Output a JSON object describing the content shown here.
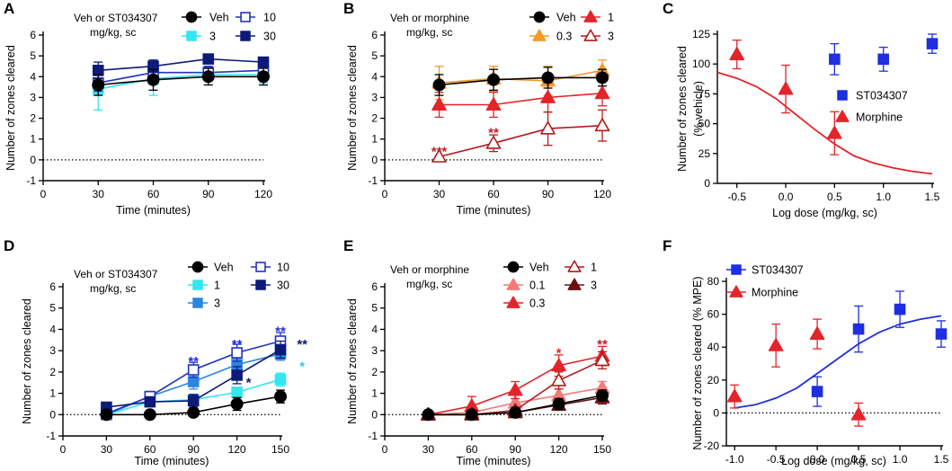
{
  "colors": {
    "veh": "#000000",
    "st_3": "#33e6f0",
    "st_10": "#2233c0",
    "st_30": "#0d1a7a",
    "st_1": "#33e6f0",
    "st_3d": "#2b86e0",
    "st_blue": "#1f2ee0",
    "mor_red": "#e3242b",
    "mor_dark": "#b01c1c",
    "mor_orange": "#f39a2b",
    "mor_light": "#f47a7a",
    "mor_brown": "#6a1212",
    "sig_red": "#c0202a"
  },
  "chart_data": [
    {
      "panel": "A",
      "type": "line",
      "xlabel": "Time (minutes)",
      "ylabel": "Number of zones cleared",
      "xlim": [
        0,
        120
      ],
      "ylim": [
        -1,
        6
      ],
      "xticks": [
        0,
        30,
        60,
        90,
        120
      ],
      "yticks": [
        -1,
        0,
        1,
        2,
        3,
        4,
        5,
        6
      ],
      "legend_title": [
        "Veh or ST034307",
        "mg/kg, sc"
      ],
      "legend": [
        {
          "label": "Veh",
          "row": 0,
          "col": 0
        },
        {
          "label": "10",
          "row": 0,
          "col": 1
        },
        {
          "label": "3",
          "row": 1,
          "col": 0
        },
        {
          "label": "30",
          "row": 1,
          "col": 1
        }
      ],
      "x": [
        30,
        60,
        90,
        120
      ],
      "series": [
        {
          "name": "3",
          "color": "#33e6f0",
          "marker": "square",
          "filled": true,
          "values": [
            3.4,
            3.9,
            4.1,
            4.1
          ],
          "err": [
            1.0,
            0.8,
            0.3,
            0.4
          ]
        },
        {
          "name": "10",
          "color": "#2233c0",
          "marker": "square",
          "filled": false,
          "values": [
            3.7,
            4.2,
            4.2,
            4.3
          ],
          "err": [
            0.4,
            0.3,
            0.3,
            0.3
          ]
        },
        {
          "name": "30",
          "color": "#0d1a7a",
          "marker": "square",
          "filled": true,
          "values": [
            4.3,
            4.5,
            4.85,
            4.7
          ],
          "err": [
            0.4,
            0.3,
            0.15,
            0.2
          ]
        },
        {
          "name": "Veh",
          "color": "#000000",
          "marker": "circle",
          "filled": true,
          "values": [
            3.6,
            3.85,
            4.0,
            4.0
          ],
          "err": [
            0.5,
            0.5,
            0.4,
            0.4
          ]
        }
      ]
    },
    {
      "panel": "B",
      "type": "line",
      "xlabel": "Time (minutes)",
      "ylabel": "Number of zones cleared",
      "xlim": [
        0,
        120
      ],
      "ylim": [
        -1,
        6
      ],
      "xticks": [
        0,
        30,
        60,
        90,
        120
      ],
      "yticks": [
        -1,
        0,
        1,
        2,
        3,
        4,
        5,
        6
      ],
      "legend_title": [
        "Veh or morphine",
        "mg/kg, sc"
      ],
      "legend": [
        {
          "label": "Veh",
          "row": 0,
          "col": 0
        },
        {
          "label": "1",
          "row": 0,
          "col": 1
        },
        {
          "label": "0.3",
          "row": 1,
          "col": 0
        },
        {
          "label": "3",
          "row": 1,
          "col": 1
        }
      ],
      "x": [
        30,
        60,
        90,
        120
      ],
      "series": [
        {
          "name": "0.3",
          "color": "#f39a2b",
          "marker": "triangle",
          "filled": true,
          "values": [
            3.7,
            3.9,
            3.8,
            4.3
          ],
          "err": [
            0.8,
            0.6,
            0.7,
            0.5
          ]
        },
        {
          "name": "1",
          "color": "#e3242b",
          "marker": "triangle",
          "filled": true,
          "values": [
            2.65,
            2.65,
            3.0,
            3.2
          ],
          "err": [
            0.6,
            0.6,
            0.7,
            0.6
          ]
        },
        {
          "name": "3",
          "color": "#b01c1c",
          "marker": "triangle",
          "filled": false,
          "values": [
            0.15,
            0.8,
            1.5,
            1.65
          ],
          "err": [
            0.05,
            0.4,
            0.8,
            0.75
          ]
        },
        {
          "name": "Veh",
          "color": "#000000",
          "marker": "circle",
          "filled": true,
          "values": [
            3.6,
            3.85,
            3.95,
            3.95
          ],
          "err": [
            0.5,
            0.5,
            0.5,
            0.4
          ]
        }
      ],
      "annotations": [
        {
          "text": "***",
          "x": 30,
          "y": 0.45,
          "color": "#c0202a"
        },
        {
          "text": "**",
          "x": 60,
          "y": 1.35,
          "color": "#c0202a"
        }
      ]
    },
    {
      "panel": "C",
      "type": "scatter",
      "xlabel": "Log dose (mg/kg, sc)",
      "ylabel": [
        "Number of zones cleared",
        "(% vehicle)"
      ],
      "xlim": [
        -0.7,
        1.5
      ],
      "ylim": [
        0,
        125
      ],
      "xticks": [
        -0.5,
        0.0,
        0.5,
        1.0,
        1.5
      ],
      "xtick_labels": [
        "-0.5",
        "0.0",
        "0.5",
        "1.0",
        "1.5"
      ],
      "yticks": [
        0,
        25,
        50,
        75,
        100,
        125
      ],
      "legend": [
        {
          "label": "ST034307",
          "marker": "square",
          "color": "#1f2ee0"
        },
        {
          "label": "Morphine",
          "marker": "triangle",
          "color": "#e3242b"
        }
      ],
      "series": [
        {
          "name": "ST034307",
          "color": "#1f2ee0",
          "marker": "square",
          "x": [
            0.5,
            1.0,
            1.5
          ],
          "values": [
            104,
            104,
            117
          ],
          "err": [
            13,
            10,
            8
          ]
        },
        {
          "name": "Morphine",
          "color": "#e3242b",
          "marker": "triangle",
          "x": [
            -0.5,
            0.0,
            0.5
          ],
          "values": [
            108,
            79,
            42
          ],
          "err": [
            12,
            20,
            18
          ]
        }
      ],
      "curve": {
        "color": "#e3242b",
        "x": [
          -0.7,
          -0.5,
          -0.3,
          -0.1,
          0.1,
          0.3,
          0.5,
          0.7,
          0.9,
          1.1,
          1.3,
          1.5
        ],
        "values": [
          93,
          88,
          81,
          71,
          58,
          45,
          33,
          23,
          17,
          13,
          10,
          8
        ]
      }
    },
    {
      "panel": "D",
      "type": "line",
      "xlabel": "Time (minutes)",
      "ylabel": "Number of zones cleared",
      "xlim": [
        0,
        150
      ],
      "ylim": [
        -1,
        6
      ],
      "xticks": [
        0,
        30,
        60,
        90,
        120,
        150
      ],
      "yticks": [
        -1,
        0,
        1,
        2,
        3,
        4,
        5,
        6
      ],
      "legend_title": [
        "Veh or ST034307",
        "mg/kg, sc"
      ],
      "legend": [
        {
          "label": "Veh",
          "row": 0,
          "col": 0
        },
        {
          "label": "10",
          "row": 0,
          "col": 1
        },
        {
          "label": "1",
          "row": 1,
          "col": 0
        },
        {
          "label": "30",
          "row": 1,
          "col": 1
        },
        {
          "label": "3",
          "row": 2,
          "col": 0
        }
      ],
      "x": [
        30,
        60,
        90,
        120,
        150
      ],
      "series": [
        {
          "name": "1",
          "color": "#33e6f0",
          "marker": "square",
          "filled": true,
          "values": [
            0.0,
            0.6,
            0.7,
            1.05,
            1.65
          ],
          "err": [
            0.1,
            0.15,
            0.2,
            0.2,
            0.3
          ]
        },
        {
          "name": "3",
          "color": "#2b86e0",
          "marker": "square",
          "filled": true,
          "values": [
            0.0,
            0.85,
            1.55,
            2.35,
            2.85
          ],
          "err": [
            0.1,
            0.2,
            0.35,
            0.3,
            0.3
          ]
        },
        {
          "name": "10",
          "color": "#2233c0",
          "marker": "square",
          "filled": false,
          "values": [
            0.05,
            0.85,
            2.1,
            2.9,
            3.45
          ],
          "err": [
            0.1,
            0.2,
            0.35,
            0.4,
            0.4
          ]
        },
        {
          "name": "30",
          "color": "#0d1a7a",
          "marker": "square",
          "filled": true,
          "values": [
            0.35,
            0.6,
            0.65,
            1.85,
            3.05
          ],
          "err": [
            0.1,
            0.2,
            0.3,
            0.4,
            0.4
          ]
        },
        {
          "name": "Veh",
          "color": "#000000",
          "marker": "circle",
          "filled": true,
          "values": [
            0.0,
            0.0,
            0.1,
            0.5,
            0.85
          ],
          "err": [
            0.05,
            0.05,
            0.1,
            0.3,
            0.3
          ]
        }
      ],
      "annotations": [
        {
          "text": "**",
          "x": 90,
          "y": 2.55,
          "color": "#1f2ee0"
        },
        {
          "text": "**",
          "x": 120,
          "y": 3.35,
          "color": "#1f2ee0"
        },
        {
          "text": "**",
          "x": 150,
          "y": 3.95,
          "color": "#1f2ee0"
        },
        {
          "text": "*",
          "x": 128,
          "y": 1.55,
          "color": "#0d1a7a"
        },
        {
          "text": "**",
          "x": 165,
          "y": 3.35,
          "color": "#0d1a7a"
        },
        {
          "text": "*",
          "x": 165,
          "y": 2.3,
          "color": "#33c4f0"
        }
      ]
    },
    {
      "panel": "E",
      "type": "line",
      "xlabel": "Time (minutes)",
      "ylabel": "Number of zones cleared",
      "xlim": [
        0,
        150
      ],
      "ylim": [
        -1,
        6
      ],
      "xticks": [
        0,
        30,
        60,
        90,
        120,
        150
      ],
      "yticks": [
        -1,
        0,
        1,
        2,
        3,
        4,
        5,
        6
      ],
      "legend_title": [
        "Veh or morphine",
        "mg/kg, sc"
      ],
      "legend": [
        {
          "label": "Veh",
          "row": 0,
          "col": 0
        },
        {
          "label": "1",
          "row": 0,
          "col": 1
        },
        {
          "label": "0.1",
          "row": 1,
          "col": 0
        },
        {
          "label": "3",
          "row": 1,
          "col": 1
        },
        {
          "label": "0.3",
          "row": 2,
          "col": 0
        }
      ],
      "x": [
        30,
        60,
        90,
        120,
        150
      ],
      "series": [
        {
          "name": "0.1",
          "color": "#f47a7a",
          "marker": "triangle",
          "filled": true,
          "values": [
            0.0,
            0.1,
            0.55,
            0.9,
            1.25
          ],
          "err": [
            0.05,
            0.15,
            0.2,
            0.3,
            0.3
          ]
        },
        {
          "name": "0.3",
          "color": "#e3242b",
          "marker": "triangle",
          "filled": true,
          "values": [
            0.0,
            0.4,
            1.15,
            2.3,
            2.75
          ],
          "err": [
            0.05,
            0.45,
            0.4,
            0.5,
            0.45
          ]
        },
        {
          "name": "1",
          "color": "#b01c1c",
          "marker": "triangle",
          "filled": false,
          "values": [
            0.0,
            0.0,
            0.2,
            1.6,
            2.55
          ],
          "err": [
            0.05,
            0.05,
            0.15,
            0.4,
            0.4
          ]
        },
        {
          "name": "3",
          "color": "#6a1212",
          "marker": "triangle",
          "filled": true,
          "values": [
            0.0,
            0.0,
            0.1,
            0.45,
            0.8
          ],
          "err": [
            0.05,
            0.05,
            0.1,
            0.25,
            0.3
          ]
        },
        {
          "name": "Veh",
          "color": "#000000",
          "marker": "circle",
          "filled": true,
          "values": [
            0.0,
            0.0,
            0.1,
            0.5,
            0.9
          ],
          "err": [
            0.05,
            0.05,
            0.1,
            0.25,
            0.25
          ]
        }
      ],
      "annotations": [
        {
          "text": "*",
          "x": 120,
          "y": 2.95,
          "color": "#e3242b"
        },
        {
          "text": "**",
          "x": 150,
          "y": 3.35,
          "color": "#c0202a"
        }
      ]
    },
    {
      "panel": "F",
      "type": "scatter",
      "xlabel": "Log dose (mg/kg, sc)",
      "ylabel": "Number of zones cleared (% MPE)",
      "xlim": [
        -1.1,
        1.5
      ],
      "ylim": [
        -20,
        80
      ],
      "xticks": [
        -1.0,
        -0.5,
        0.0,
        0.5,
        1.0,
        1.5
      ],
      "xtick_labels": [
        "-1.0",
        "-0.5",
        "0.0",
        "0.5",
        "1.0",
        "1.5"
      ],
      "yticks": [
        -20,
        0,
        20,
        40,
        60,
        80
      ],
      "legend": [
        {
          "label": "ST034307",
          "marker": "square",
          "color": "#1f2ee0"
        },
        {
          "label": "Morphine",
          "marker": "triangle",
          "color": "#e3242b"
        }
      ],
      "series": [
        {
          "name": "ST034307",
          "color": "#1f2ee0",
          "marker": "square",
          "x": [
            0.0,
            0.5,
            1.0,
            1.5
          ],
          "values": [
            13,
            51,
            63,
            48
          ],
          "err": [
            9,
            14,
            11,
            8
          ]
        },
        {
          "name": "Morphine",
          "color": "#e3242b",
          "marker": "triangle",
          "x": [
            -1.0,
            -0.5,
            0.0,
            0.5
          ],
          "values": [
            10,
            41,
            48,
            -1
          ],
          "err": [
            7,
            13,
            9,
            7
          ]
        }
      ],
      "curve": {
        "color": "#1f2ee0",
        "x": [
          -1.0,
          -0.75,
          -0.5,
          -0.25,
          0.0,
          0.25,
          0.5,
          0.75,
          1.0,
          1.25,
          1.5
        ],
        "values": [
          3,
          5,
          9,
          15,
          24,
          33,
          42,
          49,
          54,
          57,
          59
        ]
      }
    }
  ]
}
